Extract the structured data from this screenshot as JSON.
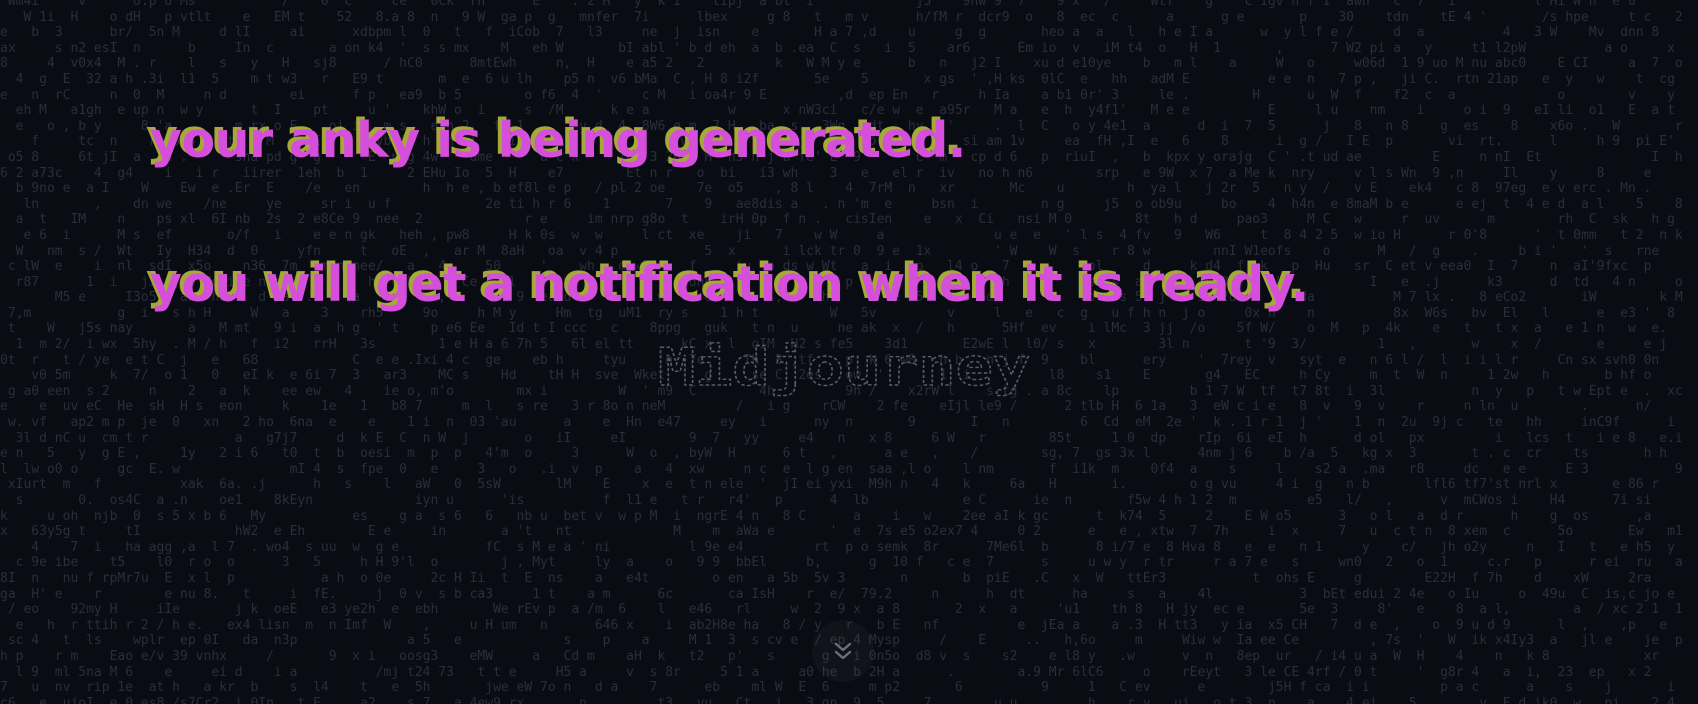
{
  "message": {
    "line1": "your anky is being generated.",
    "line2": "you will get a notification when it is ready."
  },
  "background_logo": "Midjourney",
  "scroll_button": {
    "icon": "double-chevron-down-icon"
  },
  "colors": {
    "background": "#0a0c13",
    "text_primary": "#d54edc",
    "text_shadow": "#a6a838",
    "noise_text": "#2a2e3a",
    "logo_stroke": "#585d6b"
  }
}
